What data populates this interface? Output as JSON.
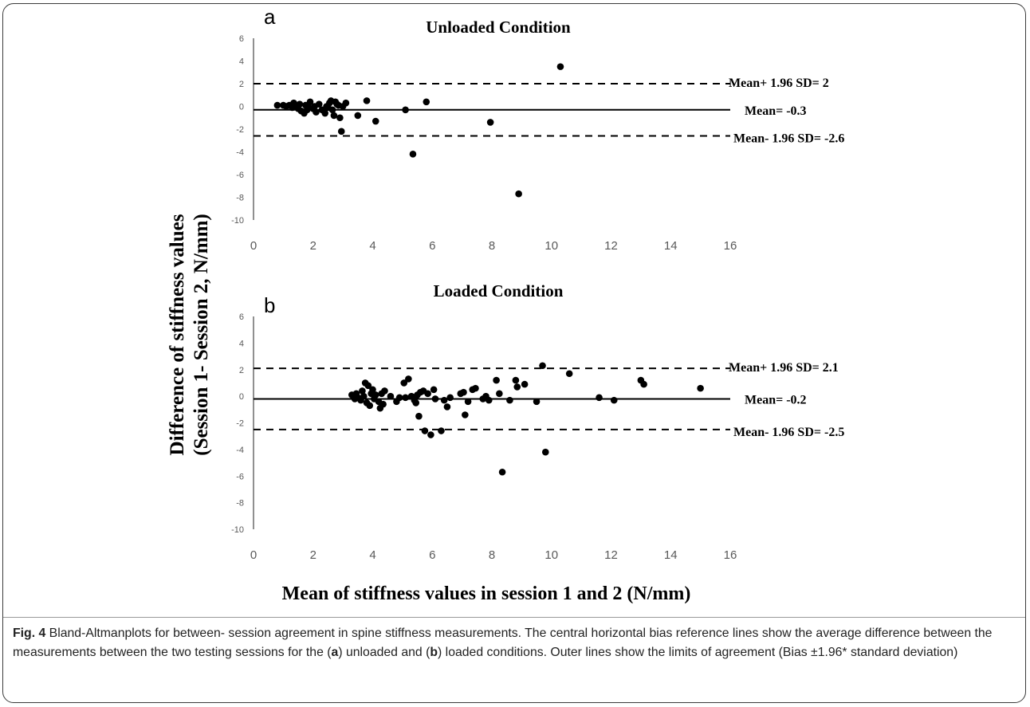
{
  "figure": {
    "y_axis_label_line1": "Difference of stiffness values",
    "y_axis_label_line2": "(Session 1- Session 2, N/mm)",
    "x_axis_label": "Mean of stiffness values in session 1 and 2 (N/mm)"
  },
  "caption": {
    "fig_label": "Fig. 4",
    "text_1": " Bland-Altmanplots for between- session agreement in spine stiffness measurements. The central horizontal bias reference lines show the average difference between the measurements between the two testing sessions for the (",
    "a": "a",
    "text_2": ") unloaded and (",
    "b": "b",
    "text_3": ") loaded conditions. Outer lines show the limits of agreement (Bias ±1.96* standard deviation)"
  },
  "colors": {
    "ink": "#000000",
    "axis": "#555555",
    "tick_label": "#595959"
  },
  "chart_data": [
    {
      "type": "scatter",
      "panel_letter": "a",
      "title": "Unloaded Condition",
      "xlim": [
        0,
        16
      ],
      "ylim": [
        -10,
        6
      ],
      "xticks": [
        0,
        2,
        4,
        6,
        8,
        10,
        12,
        14,
        16
      ],
      "yticks": [
        6,
        4,
        2,
        0,
        -2,
        -4,
        -6,
        -8,
        -10
      ],
      "reference_lines": [
        {
          "value": 2,
          "style": "dashed",
          "label": "Mean+ 1.96 SD= 2"
        },
        {
          "value": -0.3,
          "style": "solid",
          "label": "Mean= -0.3"
        },
        {
          "value": -2.6,
          "style": "dashed",
          "label": "Mean- 1.96 SD= -2.6"
        }
      ],
      "points": [
        [
          0.8,
          0.1
        ],
        [
          1.0,
          0.1
        ],
        [
          1.1,
          0.0
        ],
        [
          1.2,
          0.1
        ],
        [
          1.3,
          -0.1
        ],
        [
          1.35,
          0.3
        ],
        [
          1.4,
          0.1
        ],
        [
          1.5,
          -0.2
        ],
        [
          1.55,
          0.2
        ],
        [
          1.6,
          -0.4
        ],
        [
          1.7,
          -0.6
        ],
        [
          1.75,
          0.1
        ],
        [
          1.8,
          -0.3
        ],
        [
          1.85,
          -0.1
        ],
        [
          1.9,
          0.4
        ],
        [
          2.0,
          -0.2
        ],
        [
          2.05,
          0.0
        ],
        [
          2.1,
          -0.5
        ],
        [
          2.2,
          0.2
        ],
        [
          2.3,
          -0.3
        ],
        [
          2.4,
          -0.6
        ],
        [
          2.45,
          0.0
        ],
        [
          2.5,
          -0.1
        ],
        [
          2.55,
          0.3
        ],
        [
          2.6,
          0.5
        ],
        [
          2.65,
          -0.3
        ],
        [
          2.7,
          -0.8
        ],
        [
          2.75,
          0.4
        ],
        [
          2.8,
          0.2
        ],
        [
          2.85,
          0.1
        ],
        [
          2.9,
          -1.0
        ],
        [
          2.95,
          -2.2
        ],
        [
          3.0,
          0.0
        ],
        [
          3.1,
          0.3
        ],
        [
          3.5,
          -0.8
        ],
        [
          3.8,
          0.5
        ],
        [
          4.1,
          -1.3
        ],
        [
          5.1,
          -0.3
        ],
        [
          5.35,
          -4.2
        ],
        [
          5.8,
          0.4
        ],
        [
          7.95,
          -1.4
        ],
        [
          8.9,
          -7.7
        ],
        [
          10.3,
          3.5
        ]
      ]
    },
    {
      "type": "scatter",
      "panel_letter": "b",
      "title": "Loaded Condition",
      "xlim": [
        0,
        16
      ],
      "ylim": [
        -10,
        6
      ],
      "xticks": [
        0,
        2,
        4,
        6,
        8,
        10,
        12,
        14,
        16
      ],
      "yticks": [
        6,
        4,
        2,
        0,
        -2,
        -4,
        -6,
        -8,
        -10
      ],
      "reference_lines": [
        {
          "value": 2.1,
          "style": "dashed",
          "label": "Mean+ 1.96 SD= 2.1"
        },
        {
          "value": -0.2,
          "style": "solid",
          "label": "Mean= -0.2"
        },
        {
          "value": -2.5,
          "style": "dashed",
          "label": "Mean- 1.96 SD= -2.5"
        }
      ],
      "points": [
        [
          3.3,
          0.1
        ],
        [
          3.4,
          -0.2
        ],
        [
          3.45,
          0.2
        ],
        [
          3.5,
          -0.1
        ],
        [
          3.6,
          -0.3
        ],
        [
          3.65,
          0.4
        ],
        [
          3.7,
          0.0
        ],
        [
          3.75,
          1.0
        ],
        [
          3.8,
          -0.5
        ],
        [
          3.85,
          0.8
        ],
        [
          3.9,
          -0.7
        ],
        [
          3.95,
          0.2
        ],
        [
          4.0,
          0.5
        ],
        [
          4.05,
          -0.2
        ],
        [
          4.1,
          0.1
        ],
        [
          4.2,
          -0.4
        ],
        [
          4.25,
          -0.9
        ],
        [
          4.3,
          0.2
        ],
        [
          4.35,
          -0.6
        ],
        [
          4.4,
          0.4
        ],
        [
          4.6,
          0.0
        ],
        [
          4.8,
          -0.4
        ],
        [
          4.9,
          -0.1
        ],
        [
          5.05,
          1.0
        ],
        [
          5.1,
          -0.1
        ],
        [
          5.2,
          1.3
        ],
        [
          5.3,
          0.0
        ],
        [
          5.4,
          -0.3
        ],
        [
          5.45,
          -0.5
        ],
        [
          5.5,
          0.1
        ],
        [
          5.55,
          -1.5
        ],
        [
          5.6,
          0.3
        ],
        [
          5.7,
          0.4
        ],
        [
          5.75,
          -2.6
        ],
        [
          5.85,
          0.2
        ],
        [
          5.95,
          -2.9
        ],
        [
          6.05,
          0.5
        ],
        [
          6.1,
          -0.2
        ],
        [
          6.3,
          -2.6
        ],
        [
          6.4,
          -0.3
        ],
        [
          6.5,
          -0.8
        ],
        [
          6.6,
          -0.1
        ],
        [
          6.95,
          0.2
        ],
        [
          7.05,
          0.3
        ],
        [
          7.1,
          -1.4
        ],
        [
          7.2,
          -0.4
        ],
        [
          7.35,
          0.5
        ],
        [
          7.45,
          0.6
        ],
        [
          7.7,
          -0.2
        ],
        [
          7.8,
          0.0
        ],
        [
          7.9,
          -0.3
        ],
        [
          8.15,
          1.2
        ],
        [
          8.25,
          0.2
        ],
        [
          8.35,
          -5.7
        ],
        [
          8.6,
          -0.3
        ],
        [
          8.8,
          1.2
        ],
        [
          8.85,
          0.7
        ],
        [
          9.1,
          0.9
        ],
        [
          9.5,
          -0.4
        ],
        [
          9.7,
          2.3
        ],
        [
          9.8,
          -4.2
        ],
        [
          10.6,
          1.7
        ],
        [
          11.6,
          -0.1
        ],
        [
          12.1,
          -0.3
        ],
        [
          13.0,
          1.2
        ],
        [
          13.1,
          0.9
        ],
        [
          15.0,
          0.6
        ]
      ]
    }
  ]
}
